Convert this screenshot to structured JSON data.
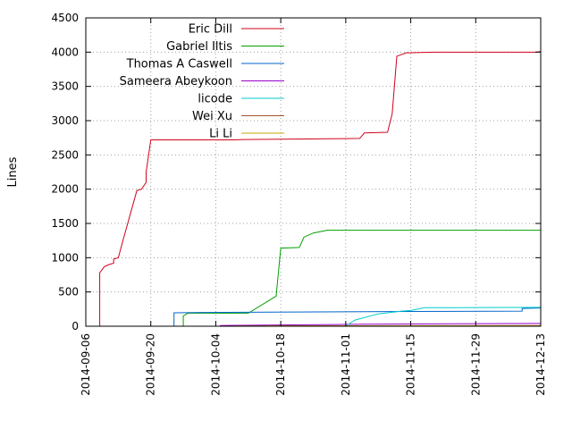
{
  "chart_data": {
    "type": "line",
    "title": "",
    "xlabel": "",
    "ylabel": "Lines",
    "ylim": [
      0,
      4500
    ],
    "xlim": [
      "2014-09-06",
      "2014-12-13"
    ],
    "y_ticks": [
      0,
      500,
      1000,
      1500,
      2000,
      2500,
      3000,
      3500,
      4000,
      4500
    ],
    "x_ticks": [
      "2014-09-06",
      "2014-09-20",
      "2014-10-04",
      "2014-10-18",
      "2014-11-01",
      "2014-11-15",
      "2014-11-29",
      "2014-12-13"
    ],
    "grid": true,
    "legend_position": "top-left",
    "series": [
      {
        "name": "Eric Dill",
        "color": "#d0021b",
        "points": [
          [
            "2014-09-09",
            0
          ],
          [
            "2014-09-09",
            780
          ],
          [
            "2014-09-10",
            870
          ],
          [
            "2014-09-11",
            900
          ],
          [
            "2014-09-12",
            920
          ],
          [
            "2014-09-12",
            980
          ],
          [
            "2014-09-13",
            1000
          ],
          [
            "2014-09-14",
            1250
          ],
          [
            "2014-09-17",
            1980
          ],
          [
            "2014-09-18",
            2000
          ],
          [
            "2014-09-19",
            2100
          ],
          [
            "2014-09-19",
            2250
          ],
          [
            "2014-09-20",
            2720
          ],
          [
            "2014-10-08",
            2720
          ],
          [
            "2014-10-10",
            2725
          ],
          [
            "2014-10-18",
            2730
          ],
          [
            "2014-11-04",
            2740
          ],
          [
            "2014-11-05",
            2820
          ],
          [
            "2014-11-10",
            2830
          ],
          [
            "2014-11-11",
            3100
          ],
          [
            "2014-11-12",
            3940
          ],
          [
            "2014-11-14",
            3990
          ],
          [
            "2014-11-20",
            4000
          ],
          [
            "2014-12-12",
            4000
          ],
          [
            "2014-12-13",
            4010
          ]
        ]
      },
      {
        "name": "Gabriel Iltis",
        "color": "#00a000",
        "points": [
          [
            "2014-09-27",
            0
          ],
          [
            "2014-09-27",
            150
          ],
          [
            "2014-09-28",
            190
          ],
          [
            "2014-10-11",
            190
          ],
          [
            "2014-10-17",
            440
          ],
          [
            "2014-10-18",
            1140
          ],
          [
            "2014-10-22",
            1150
          ],
          [
            "2014-10-23",
            1300
          ],
          [
            "2014-10-25",
            1360
          ],
          [
            "2014-10-28",
            1400
          ],
          [
            "2014-12-13",
            1400
          ]
        ]
      },
      {
        "name": "Thomas A Caswell",
        "color": "#0066cc",
        "points": [
          [
            "2014-09-25",
            0
          ],
          [
            "2014-09-25",
            195
          ],
          [
            "2014-10-01",
            200
          ],
          [
            "2014-10-15",
            205
          ],
          [
            "2014-10-31",
            210
          ],
          [
            "2014-11-15",
            215
          ],
          [
            "2014-12-09",
            220
          ],
          [
            "2014-12-09",
            260
          ],
          [
            "2014-12-13",
            265
          ]
        ]
      },
      {
        "name": "Sameera Abeykoon",
        "color": "#9900cc",
        "points": [
          [
            "2014-10-05",
            0
          ],
          [
            "2014-10-05",
            10
          ],
          [
            "2014-10-20",
            20
          ],
          [
            "2014-10-30",
            25
          ],
          [
            "2014-11-05",
            30
          ],
          [
            "2014-11-20",
            35
          ],
          [
            "2014-12-13",
            40
          ]
        ]
      },
      {
        "name": "licode",
        "color": "#00cccc",
        "points": [
          [
            "2014-09-21",
            0
          ],
          [
            "2014-10-10",
            0
          ],
          [
            "2014-11-01",
            5
          ],
          [
            "2014-11-03",
            90
          ],
          [
            "2014-11-08",
            180
          ],
          [
            "2014-11-13",
            220
          ],
          [
            "2014-11-15",
            230
          ],
          [
            "2014-11-18",
            270
          ],
          [
            "2014-12-13",
            275
          ]
        ]
      },
      {
        "name": "Wei Xu",
        "color": "#a0522d",
        "points": [
          [
            "2014-10-08",
            0
          ],
          [
            "2014-10-08",
            5
          ],
          [
            "2014-12-13",
            10
          ]
        ]
      },
      {
        "name": "Li Li",
        "color": "#c8a800",
        "points": [
          [
            "2014-10-15",
            0
          ],
          [
            "2014-10-15",
            5
          ],
          [
            "2014-12-13",
            5
          ]
        ]
      }
    ]
  }
}
